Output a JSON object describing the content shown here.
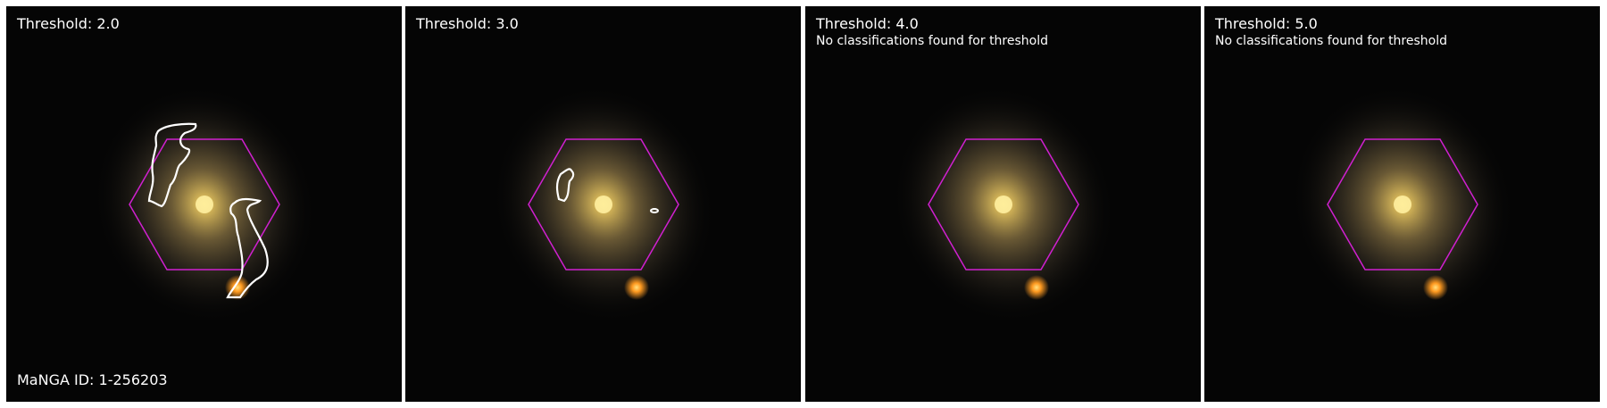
{
  "panels": [
    {
      "threshold_label": "Threshold: 2.0",
      "note": "",
      "galaxy_id": "MaNGA ID: 1-256203"
    },
    {
      "threshold_label": "Threshold: 3.0",
      "note": "",
      "galaxy_id": ""
    },
    {
      "threshold_label": "Threshold: 4.0",
      "note": "No classifications found for threshold",
      "galaxy_id": ""
    },
    {
      "threshold_label": "Threshold: 5.0",
      "note": "No classifications found for threshold",
      "galaxy_id": ""
    }
  ],
  "colors": {
    "background": "#050505",
    "galaxy_core": "#f2d060",
    "galaxy_halo": "#7a6a3a",
    "companion_star": "#ff9a20",
    "hexagon_outline": "#d020d0",
    "contour": "#ffffff",
    "text": "#ffffff"
  }
}
